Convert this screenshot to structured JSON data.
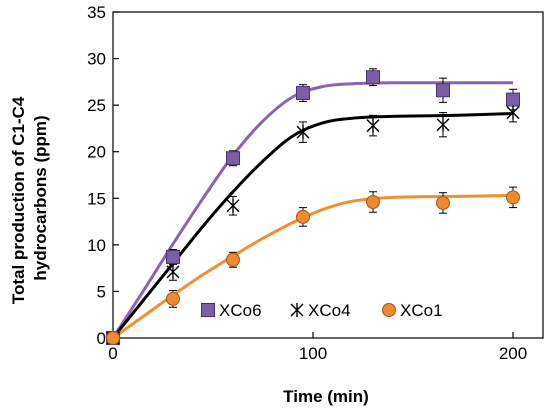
{
  "chart_data": {
    "type": "scatter",
    "title": "",
    "xlabel": "Time (min)",
    "ylabel_lines": [
      "Total production of C1-C4",
      "hydrocarbons (ppm)"
    ],
    "xlim": [
      0,
      215
    ],
    "ylim": [
      0,
      35
    ],
    "xticks": [
      0,
      100,
      200
    ],
    "yticks": [
      0,
      5,
      10,
      15,
      20,
      25,
      30,
      35
    ],
    "grid": false,
    "legend_position": "bottom-center (inside plot)",
    "x": [
      0,
      30,
      60,
      95,
      130,
      165,
      200
    ],
    "series": [
      {
        "name": "XCo6",
        "marker": "square",
        "color": "#7B5FA6",
        "values": [
          0,
          8.7,
          19.3,
          26.3,
          28.0,
          26.6,
          25.6
        ],
        "error": [
          0.5,
          0.8,
          0.8,
          0.9,
          0.9,
          1.3,
          1.1
        ],
        "fit_color": "#8C62B5",
        "fit": [
          [
            0,
            0
          ],
          [
            15,
            5.0
          ],
          [
            30,
            10.1
          ],
          [
            45,
            15.0
          ],
          [
            60,
            19.6
          ],
          [
            75,
            23.3
          ],
          [
            90,
            25.9
          ],
          [
            105,
            27.0
          ],
          [
            120,
            27.3
          ],
          [
            140,
            27.4
          ],
          [
            170,
            27.4
          ],
          [
            200,
            27.4
          ]
        ]
      },
      {
        "name": "XCo4",
        "marker": "asterisk",
        "color": "#000000",
        "values": [
          0,
          7.1,
          14.2,
          22.1,
          22.8,
          22.9,
          24.2
        ],
        "error": [
          0.5,
          0.9,
          1.0,
          1.1,
          1.1,
          1.3,
          1.0
        ],
        "fit_color": "#000000",
        "fit": [
          [
            0,
            0
          ],
          [
            15,
            4.0
          ],
          [
            30,
            8.0
          ],
          [
            45,
            12.0
          ],
          [
            60,
            15.7
          ],
          [
            75,
            19.0
          ],
          [
            90,
            21.7
          ],
          [
            105,
            23.1
          ],
          [
            120,
            23.6
          ],
          [
            140,
            23.8
          ],
          [
            170,
            23.9
          ],
          [
            200,
            24.1
          ]
        ]
      },
      {
        "name": "XCo1",
        "marker": "circle",
        "color": "#F08A30",
        "values": [
          0,
          4.2,
          8.4,
          13.0,
          14.6,
          14.5,
          15.1
        ],
        "error": [
          0.4,
          0.9,
          0.8,
          1.0,
          1.1,
          1.1,
          1.1
        ],
        "fit_color": "#F0912E",
        "fit": [
          [
            0,
            0
          ],
          [
            15,
            2.3
          ],
          [
            30,
            4.6
          ],
          [
            45,
            6.8
          ],
          [
            60,
            8.8
          ],
          [
            75,
            10.7
          ],
          [
            90,
            12.4
          ],
          [
            105,
            13.8
          ],
          [
            120,
            14.7
          ],
          [
            140,
            15.1
          ],
          [
            170,
            15.2
          ],
          [
            200,
            15.3
          ]
        ]
      }
    ]
  }
}
